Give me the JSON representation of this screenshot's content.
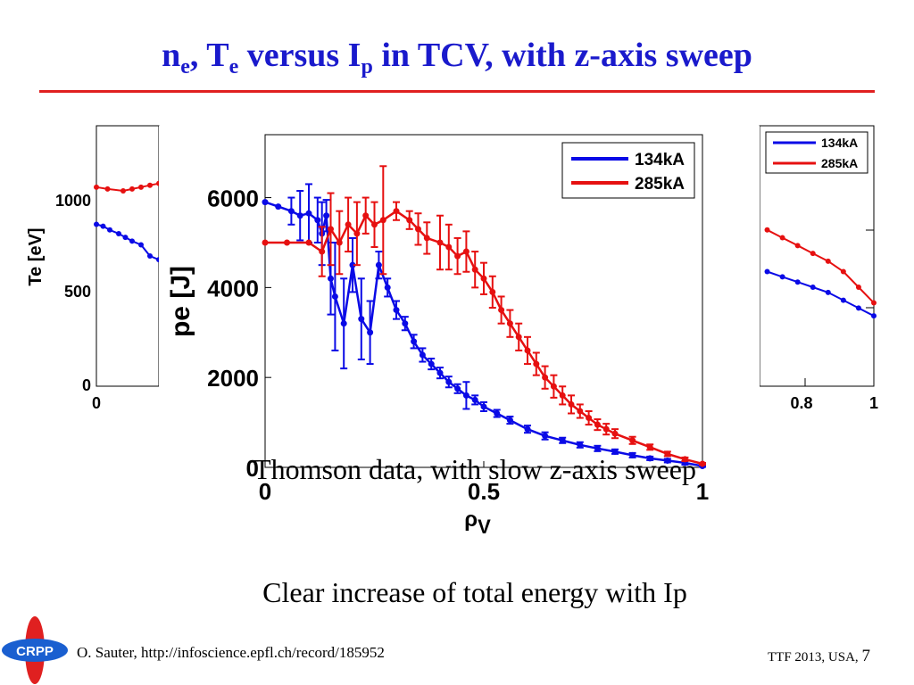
{
  "title": {
    "n": "n",
    "n_sub": "e",
    "sep": ", ",
    "t": "T",
    "t_sub": "e",
    "mid": " versus I",
    "i_sub": "p",
    "tail": " in TCV, with z-axis sweep"
  },
  "captions": {
    "thomson": "Thomson data, with slow z-axis sweep",
    "energy": "Clear increase of total energy with Ip"
  },
  "footer": {
    "author": "O. Sauter, http://infoscience.epfl.ch/record/185952",
    "conference": "TTF 2013, USA, ",
    "page": "7"
  },
  "logo": {
    "text": "CRPP"
  },
  "colors": {
    "title": "#1a1acc",
    "rule": "#e02020",
    "series_134": "#0a0ae6",
    "series_285": "#e61010"
  },
  "chart_data": [
    {
      "type": "scatter",
      "role": "background-left-te",
      "ylabel": "Te [eV]",
      "y_ticks": [
        "1000",
        "500",
        "0"
      ],
      "x_ticks": [
        "0"
      ],
      "xlim": [
        0,
        1
      ],
      "ylim": [
        0,
        1400
      ],
      "series": [
        {
          "name": "134kA",
          "x": [
            0.0,
            0.03,
            0.06,
            0.1,
            0.13,
            0.16,
            0.2,
            0.24,
            0.28
          ],
          "y": [
            870,
            860,
            840,
            820,
            800,
            780,
            760,
            700,
            680
          ]
        },
        {
          "name": "285kA",
          "x": [
            0.0,
            0.05,
            0.12,
            0.16,
            0.2,
            0.24,
            0.28
          ],
          "y": [
            1070,
            1060,
            1050,
            1060,
            1070,
            1080,
            1090
          ]
        }
      ]
    },
    {
      "type": "scatter",
      "role": "background-right-ne",
      "x_ticks": [
        "0.8",
        "1"
      ],
      "legend": [
        "134kA",
        "285kA"
      ],
      "legend_position": "top-right",
      "series": [
        {
          "name": "134kA",
          "x": [
            0.72,
            0.76,
            0.8,
            0.84,
            0.88,
            0.92,
            0.96,
            1.0
          ],
          "y": [
            0.44,
            0.42,
            0.4,
            0.38,
            0.36,
            0.33,
            0.3,
            0.27
          ]
        },
        {
          "name": "285kA",
          "x": [
            0.72,
            0.76,
            0.8,
            0.84,
            0.88,
            0.92,
            0.96,
            1.0
          ],
          "y": [
            0.6,
            0.57,
            0.54,
            0.51,
            0.48,
            0.44,
            0.38,
            0.32
          ]
        }
      ]
    },
    {
      "type": "scatter",
      "role": "main-pe",
      "xlabel": "ρ",
      "xlabel_sub": "V",
      "ylabel": "pe [J]",
      "xlim": [
        0,
        1
      ],
      "ylim": [
        0,
        7400
      ],
      "x_ticks": [
        0,
        0.5,
        1
      ],
      "x_tick_labels": [
        "0",
        "0.5",
        "1"
      ],
      "y_ticks": [
        0,
        2000,
        4000,
        6000
      ],
      "y_tick_labels": [
        "0",
        "2000",
        "4000",
        "6000"
      ],
      "grid": false,
      "legend_position": "top-right",
      "series": [
        {
          "name": "134kA",
          "x": [
            0.0,
            0.03,
            0.06,
            0.08,
            0.1,
            0.12,
            0.13,
            0.14,
            0.15,
            0.16,
            0.18,
            0.2,
            0.22,
            0.24,
            0.26,
            0.28,
            0.3,
            0.32,
            0.34,
            0.36,
            0.38,
            0.4,
            0.42,
            0.44,
            0.46,
            0.48,
            0.5,
            0.53,
            0.56,
            0.6,
            0.64,
            0.68,
            0.72,
            0.76,
            0.8,
            0.84,
            0.88,
            0.92,
            0.96,
            1.0
          ],
          "y": [
            5900,
            5800,
            5700,
            5600,
            5650,
            5500,
            5200,
            5600,
            4200,
            3800,
            3200,
            4500,
            3300,
            3000,
            4500,
            4000,
            3500,
            3200,
            2800,
            2500,
            2300,
            2100,
            1900,
            1750,
            1600,
            1500,
            1350,
            1200,
            1050,
            850,
            700,
            600,
            500,
            420,
            350,
            270,
            200,
            150,
            100,
            30
          ],
          "err": [
            0,
            0,
            300,
            550,
            650,
            500,
            700,
            350,
            800,
            1200,
            1000,
            600,
            900,
            700,
            300,
            200,
            200,
            150,
            150,
            150,
            120,
            120,
            120,
            100,
            300,
            100,
            100,
            80,
            80,
            80,
            80,
            60,
            60,
            60,
            50,
            50,
            40,
            40,
            40,
            20
          ]
        },
        {
          "name": "285kA",
          "x": [
            0.0,
            0.05,
            0.1,
            0.13,
            0.15,
            0.17,
            0.19,
            0.21,
            0.23,
            0.25,
            0.27,
            0.3,
            0.33,
            0.35,
            0.37,
            0.4,
            0.42,
            0.44,
            0.46,
            0.48,
            0.5,
            0.52,
            0.54,
            0.56,
            0.58,
            0.6,
            0.62,
            0.64,
            0.66,
            0.68,
            0.7,
            0.72,
            0.74,
            0.76,
            0.78,
            0.8,
            0.84,
            0.88,
            0.92,
            0.96,
            1.0
          ],
          "y": [
            5000,
            5000,
            5000,
            4800,
            5300,
            5000,
            5400,
            5200,
            5600,
            5400,
            5500,
            5700,
            5500,
            5300,
            5100,
            5000,
            4900,
            4700,
            4800,
            4400,
            4200,
            3900,
            3500,
            3200,
            2900,
            2600,
            2300,
            2000,
            1800,
            1600,
            1400,
            1250,
            1100,
            950,
            850,
            750,
            600,
            450,
            300,
            180,
            80
          ],
          "err": [
            0,
            0,
            0,
            550,
            800,
            700,
            600,
            700,
            400,
            500,
            1200,
            200,
            200,
            350,
            350,
            600,
            500,
            400,
            450,
            400,
            350,
            350,
            300,
            300,
            300,
            300,
            250,
            250,
            250,
            200,
            200,
            150,
            150,
            120,
            120,
            100,
            80,
            60,
            50,
            40,
            20
          ]
        }
      ]
    }
  ]
}
